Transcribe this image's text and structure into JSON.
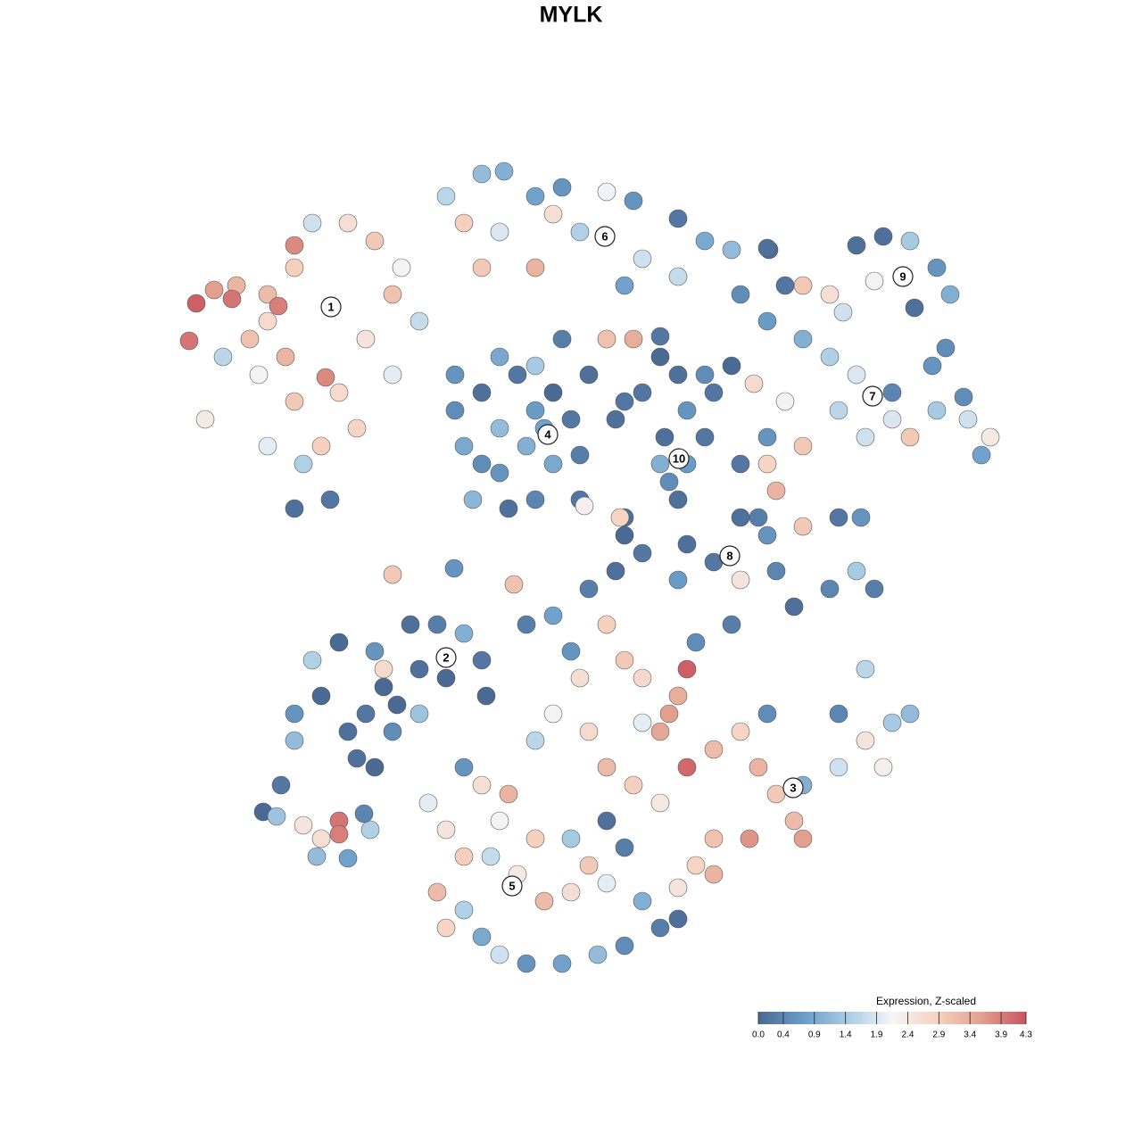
{
  "chart_data": {
    "type": "scatter",
    "title": "MYLK",
    "xlim": [
      0,
      1280
    ],
    "ylim": [
      1280,
      0
    ],
    "series": [
      {
        "x": [
          220,
          212,
          240,
          265,
          260,
          300,
          330,
          312,
          365,
          280,
          300,
          330,
          350,
          390,
          420,
          440,
          410,
          380,
          330,
          290,
          250,
          230,
          340,
          370,
          330,
          400,
          450,
          470,
          300,
          360,
          440,
          320,
          500,
          540,
          565,
          600,
          630,
          680,
          710,
          760,
          790,
          820,
          830,
          720,
          650,
          600,
          540,
          520,
          680,
          710,
          700,
          560,
          620,
          760,
          862,
          960,
          990,
          1020,
          1050,
          1065,
          1060,
          1025,
          900,
          930,
          980,
          880,
          945,
          860,
          900,
          930,
          960,
          1000,
          1050,
          1085,
          1110,
          1100,
          1080,
          1020,
          1000,
          940,
          880,
          845,
          900,
          860,
          1045,
          970,
          510,
          520,
          540,
          560,
          580,
          600,
          620,
          640,
          650,
          620,
          600,
          570,
          530,
          560,
          590,
          510,
          660,
          690,
          700,
          630,
          560,
          600,
          540,
          650,
          610,
          720,
          760,
          790,
          820,
          800,
          770,
          745,
          770,
          790,
          750,
          760,
          740,
          700,
          740,
          830,
          860,
          870,
          850,
          830,
          860,
          900,
          940,
          965,
          980,
          960,
          930,
          890,
          870,
          800,
          770,
          760,
          720,
          690,
          660,
          700,
          830,
          330,
          360,
          390,
          410,
          430,
          420,
          380,
          350,
          440,
          420,
          400,
          460,
          490,
          520,
          500,
          470,
          540,
          545,
          330,
          445,
          430,
          470,
          590,
          620,
          640,
          680,
          700,
          720,
          770,
          760,
          750,
          740,
          770,
          800,
          830,
          850,
          870,
          890,
          900,
          840,
          800,
          780,
          800,
          900,
          940,
          970,
          1000,
          1020,
          970,
          940,
          860,
          820,
          780,
          650,
          620,
          600,
          680,
          710,
          740,
          660,
          720,
          990,
          480,
          500,
          520,
          490,
          520,
          540,
          560,
          590,
          630,
          670,
          700,
          740,
          760,
          720,
          680,
          640,
          610,
          580,
          550,
          600,
          640,
          660,
          570,
          540,
          520,
          560,
          680,
          700,
          760,
          500,
          295,
          315,
          310,
          340,
          360,
          380,
          380,
          355,
          390,
          415,
          408,
          440,
          509,
          576,
          655,
          695,
          740,
          860
        ],
        "y": [
          340,
          382,
          325,
          320,
          335,
          330,
          275,
          343,
          423,
          380,
          360,
          300,
          250,
          250,
          270,
          330,
          380,
          440,
          450,
          420,
          400,
          470,
          520,
          560,
          570,
          480,
          300,
          360,
          500,
          500,
          420,
          400,
          220,
          195,
          192,
          220,
          210,
          215,
          225,
          245,
          270,
          280,
          330,
          290,
          260,
          300,
          300,
          250,
          380,
          380,
          320,
          260,
          240,
          310,
          280,
          275,
          265,
          270,
          300,
          330,
          390,
          345,
          320,
          330,
          315,
          320,
          350,
          360,
          380,
          400,
          420,
          440,
          460,
          470,
          490,
          510,
          445,
          490,
          470,
          460,
          450,
          430,
          500,
          490,
          410,
          490,
          460,
          500,
          440,
          480,
          420,
          460,
          440,
          470,
          510,
          520,
          560,
          570,
          560,
          530,
          500,
          420,
          420,
          470,
          450,
          380,
          400,
          410,
          520,
          560,
          480,
          440,
          420,
          420,
          410,
          440,
          460,
          490,
          520,
          490,
          540,
          560,
          520,
          580,
          400,
          520,
          520,
          550,
          580,
          580,
          600,
          590,
          580,
          580,
          660,
          640,
          660,
          680,
          640,
          630,
          610,
          650,
          620,
          640,
          660,
          600,
          650,
          800,
          780,
          820,
          800,
          770,
          730,
          720,
          740,
          820,
          860,
          850,
          700,
          700,
          710,
          760,
          750,
          740,
          780,
          830,
          790,
          750,
          800,
          700,
          690,
          730,
          700,
          740,
          760,
          750,
          780,
          800,
          820,
          860,
          840,
          820,
          860,
          890,
          920,
          940,
          940,
          940,
          970,
          980,
          880,
          860,
          830,
          810,
          800,
          750,
          800,
          800,
          700,
          720,
          760,
          800,
          830,
          860,
          880,
          900,
          820,
          810,
          860,
          900,
          930,
          960,
          1000,
          1020,
          1050,
          1070,
          1080,
          1080,
          1070,
          1060,
          1040,
          1030,
          1010,
          990,
          1000,
          1010,
          980,
          960,
          940,
          940,
          970,
          890,
          880,
          860,
          920,
          920,
          950,
          995,
          1040,
          910,
          880,
          915,
          925,
          940,
          920,
          935,
          960,
          962,
          930,
          912,
          644,
          637,
          655,
          567,
          580,
          377,
          278
        ],
        "expression": [
          4.2,
          4.0,
          3.6,
          3.3,
          4.0,
          3.2,
          3.8,
          3.9,
          3.8,
          3.1,
          2.7,
          2.9,
          1.8,
          2.6,
          3.0,
          3.1,
          2.5,
          2.7,
          3.0,
          2.2,
          1.6,
          2.4,
          1.5,
          0.2,
          0.1,
          2.8,
          2.2,
          1.7,
          2.0,
          2.9,
          2.0,
          3.3,
          1.6,
          1.2,
          1.0,
          0.8,
          0.6,
          2.1,
          0.6,
          0.2,
          0.9,
          1.2,
          0.5,
          1.8,
          1.5,
          3.3,
          3.0,
          2.9,
          3.1,
          3.4,
          0.8,
          1.9,
          2.6,
          1.7,
          0.1,
          0.1,
          0.1,
          1.4,
          0.6,
          1.0,
          0.5,
          0.1,
          3.0,
          2.6,
          2.2,
          0.2,
          1.8,
          0.7,
          1.0,
          1.5,
          1.9,
          0.4,
          1.4,
          1.8,
          2.4,
          0.8,
          0.5,
          3.0,
          1.9,
          1.6,
          2.2,
          2.7,
          3.0,
          0.6,
          0.6,
          1.8,
          0.5,
          0.9,
          0.1,
          1.2,
          0.2,
          0.7,
          0.0,
          0.2,
          0.3,
          0.9,
          0.4,
          0.1,
          1.1,
          0.6,
          1.0,
          0.6,
          0.1,
          0.1,
          0.2,
          0.3,
          0.9,
          1.4,
          0.5,
          0.2,
          0.8,
          0.2,
          0.1,
          0.5,
          0.0,
          0.2,
          0.6,
          0.1,
          0.7,
          0.2,
          0.5,
          0.1,
          1.0,
          0.1,
          0.0,
          0.2,
          2.8,
          3.3,
          0.3,
          0.1,
          0.6,
          3.0,
          0.2,
          0.6,
          0.3,
          1.4,
          0.4,
          0.1,
          0.4,
          0.2,
          0.1,
          0.7,
          0.2,
          0.1,
          0.3,
          0.0,
          2.5,
          0.6,
          0.0,
          0.1,
          0.2,
          0.0,
          0.6,
          0.0,
          1.5,
          0.5,
          0.0,
          0.1,
          0.1,
          0.3,
          1.0,
          0.0,
          0.1,
          0.2,
          0.0,
          1.2,
          0.0,
          2.7,
          1.3,
          0.3,
          0.8,
          0.6,
          2.9,
          3.0,
          2.7,
          4.2,
          3.4,
          3.6,
          3.5,
          4.1,
          3.2,
          2.8,
          3.3,
          3.0,
          3.2,
          3.6,
          3.7,
          3.1,
          2.8,
          3.3,
          1.0,
          1.8,
          2.5,
          1.4,
          1.2,
          1.6,
          0.4,
          0.5,
          0.3,
          0.5,
          2.6,
          2.2,
          1.6,
          3.2,
          2.9,
          2.4,
          2.7,
          2.0,
          2.3,
          2.0,
          2.5,
          2.9,
          3.2,
          1.5,
          0.9,
          1.8,
          0.6,
          0.8,
          1.2,
          0.5,
          0.3,
          0.1,
          1.0,
          2.0,
          2.6,
          3.2,
          2.4,
          1.7,
          2.9,
          1.4,
          3.0,
          3.3,
          2.6,
          0.6,
          2.2,
          0.1,
          0.3,
          2.5,
          2.8,
          0.0,
          0.2,
          1.3,
          2.5,
          2.6,
          4.0,
          3.9,
          1.2,
          0.8,
          1.5,
          0.4,
          3.0,
          0.6,
          3.1,
          2.3,
          2.8,
          0.2,
          0.1
        ]
      }
    ],
    "clusters": [
      {
        "label": "1",
        "x": 371,
        "y": 344
      },
      {
        "label": "2",
        "x": 500,
        "y": 737
      },
      {
        "label": "3",
        "x": 889,
        "y": 883
      },
      {
        "label": "4",
        "x": 614,
        "y": 487
      },
      {
        "label": "5",
        "x": 574,
        "y": 993
      },
      {
        "label": "6",
        "x": 678,
        "y": 265
      },
      {
        "label": "7",
        "x": 978,
        "y": 444
      },
      {
        "label": "8",
        "x": 818,
        "y": 623
      },
      {
        "label": "9",
        "x": 1012,
        "y": 310
      },
      {
        "label": "10",
        "x": 761,
        "y": 514
      }
    ],
    "colorbar": {
      "title": "Expression, Z-scaled",
      "clim": [
        0,
        4.3
      ],
      "ticks": [
        {
          "value": 0,
          "label": "0.0"
        },
        0.4,
        0.9,
        1.4,
        1.9,
        2.4,
        2.9,
        3.4,
        3.9,
        4.3
      ],
      "colors": [
        "#4a6993",
        "#6a9cc8",
        "#a9cce3",
        "#f4f6f8",
        "#f6d2c0",
        "#e3a18f",
        "#c9545e"
      ]
    }
  }
}
